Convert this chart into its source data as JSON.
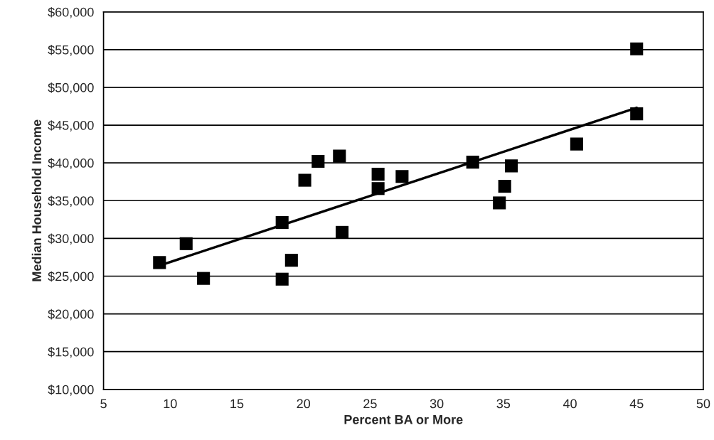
{
  "chart_data": {
    "type": "scatter",
    "xlabel": "Percent BA or More",
    "ylabel": "Median Household Income",
    "series": [
      {
        "color": "#000000",
        "marker": "square",
        "x": [
          9.2,
          11.2,
          12.5,
          18.4,
          18.4,
          19.1,
          20.1,
          21.1,
          22.7,
          22.9,
          25.6,
          25.6,
          27.4,
          32.7,
          34.7,
          35.1,
          35.6,
          40.5,
          45.0,
          45.0
        ],
        "values": [
          26800,
          29300,
          24700,
          32100,
          24600,
          27100,
          37700,
          40200,
          40900,
          30800,
          38500,
          36600,
          38200,
          40100,
          34700,
          36900,
          39600,
          42500,
          55100,
          46500
        ]
      },
      {
        "type": "line",
        "color": "#000000",
        "marker": "none",
        "line_style": "solid",
        "x": [
          9.2,
          45.0
        ],
        "values": [
          26400,
          47300
        ]
      }
    ],
    "xlim": [
      5,
      50
    ],
    "xticks": [
      5,
      10,
      15,
      20,
      25,
      30,
      35,
      40,
      45,
      50
    ],
    "ylim": [
      10000,
      60000
    ],
    "yticks": [
      {
        "value": 10000,
        "label": "$10,000"
      },
      {
        "value": 15000,
        "label": "$15,000"
      },
      {
        "value": 20000,
        "label": "$20,000"
      },
      {
        "value": 25000,
        "label": "$25,000"
      },
      {
        "value": 30000,
        "label": "$30,000"
      },
      {
        "value": 35000,
        "label": "$35,000"
      },
      {
        "value": 40000,
        "label": "$40,000"
      },
      {
        "value": 45000,
        "label": "$45,000"
      },
      {
        "value": 50000,
        "label": "$50,000"
      },
      {
        "value": 55000,
        "label": "$55,000"
      },
      {
        "value": 60000,
        "label": "$60,000"
      }
    ],
    "grid": "y"
  }
}
